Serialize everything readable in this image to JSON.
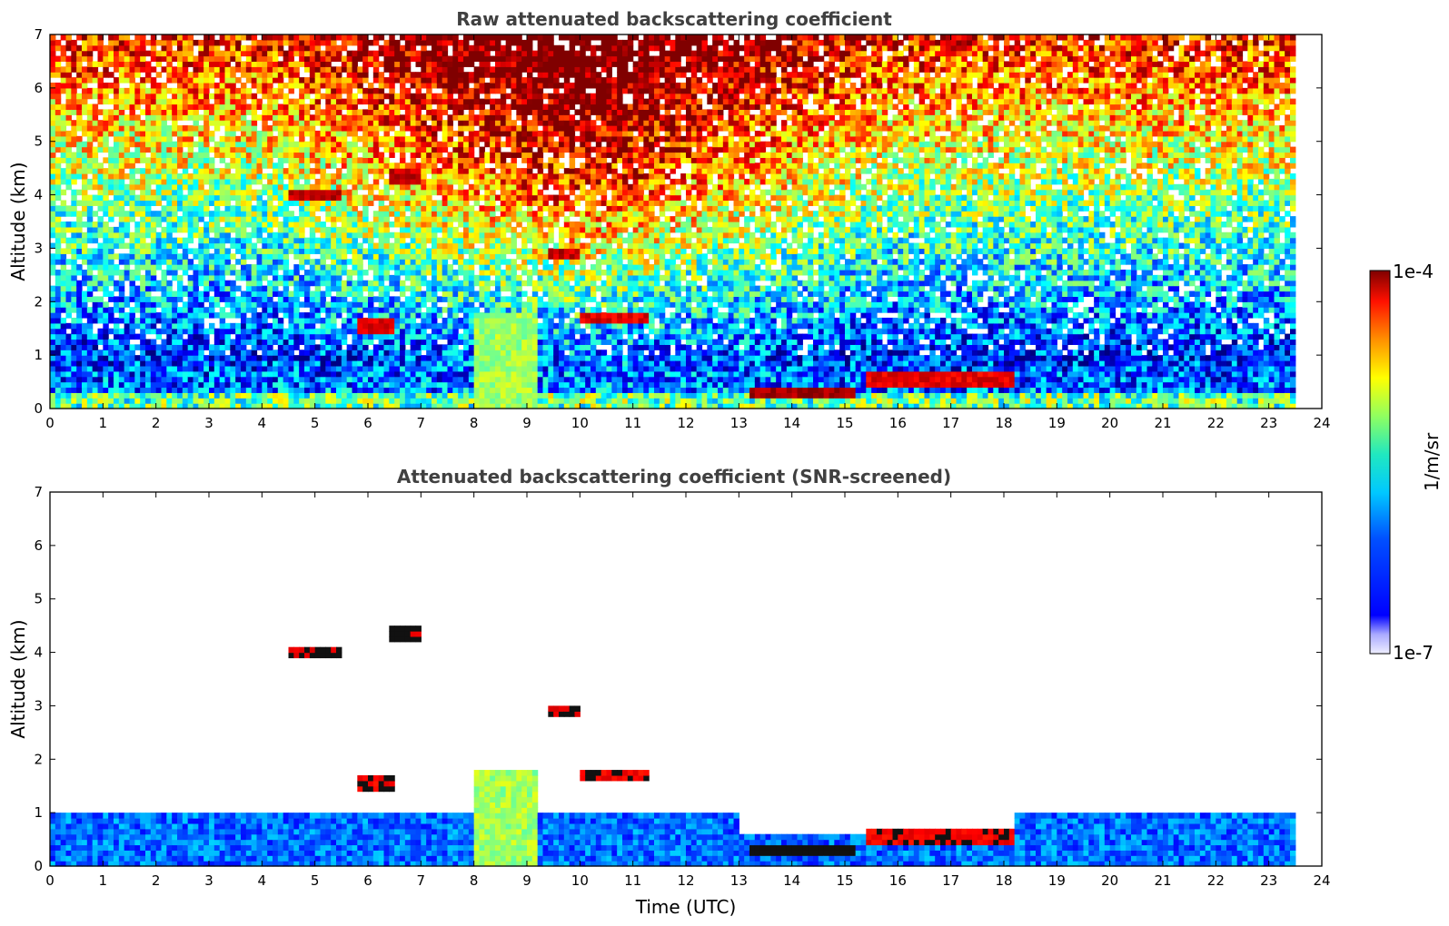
{
  "chart_data": [
    {
      "type": "heatmap",
      "title": "Raw attenuated backscattering coefficient",
      "xlabel": "",
      "ylabel": "Altitude (km)",
      "xlim": [
        0,
        24
      ],
      "ylim": [
        0,
        7
      ],
      "xticks": [
        "0",
        "1",
        "2",
        "3",
        "4",
        "5",
        "6",
        "7",
        "8",
        "9",
        "10",
        "11",
        "12",
        "13",
        "14",
        "15",
        "16",
        "17",
        "18",
        "19",
        "20",
        "21",
        "22",
        "23",
        "24"
      ],
      "yticks": [
        "0",
        "1",
        "2",
        "3",
        "4",
        "5",
        "6",
        "7"
      ],
      "data_end_hour": 23.5,
      "features": [
        {
          "name": "cloud-layer",
          "t_start": 4.5,
          "t_end": 5.5,
          "alt_km": 4.0,
          "log_value": -4.2
        },
        {
          "name": "cloud-layer",
          "t_start": 6.4,
          "t_end": 7.0,
          "alt_km": 4.35,
          "log_value": -4.2
        },
        {
          "name": "cloud-layer",
          "t_start": 5.8,
          "t_end": 6.5,
          "alt_km": 1.55,
          "log_value": -4.3
        },
        {
          "name": "cloud-layer",
          "t_start": 9.4,
          "t_end": 10.0,
          "alt_km": 2.9,
          "log_value": -4.2
        },
        {
          "name": "cloud-layer",
          "t_start": 10.0,
          "t_end": 11.3,
          "alt_km": 1.7,
          "log_value": -4.3
        },
        {
          "name": "cloud-layer",
          "t_start": 13.2,
          "t_end": 15.2,
          "alt_km": 0.3,
          "log_value": -4.1
        },
        {
          "name": "cloud-layer",
          "t_start": 15.4,
          "t_end": 18.2,
          "alt_km": 0.55,
          "log_value": -4.3
        },
        {
          "name": "precipitation",
          "t_start": 8.05,
          "t_end": 9.2,
          "alt_top_km": 1.8,
          "log_value": -5.4
        }
      ]
    },
    {
      "type": "heatmap",
      "title": "Attenuated backscattering coefficient (SNR-screened)",
      "xlabel": "Time (UTC)",
      "ylabel": "Altitude (km)",
      "xlim": [
        0,
        24
      ],
      "ylim": [
        0,
        7
      ],
      "xticks": [
        "0",
        "1",
        "2",
        "3",
        "4",
        "5",
        "6",
        "7",
        "8",
        "9",
        "10",
        "11",
        "12",
        "13",
        "14",
        "15",
        "16",
        "17",
        "18",
        "19",
        "20",
        "21",
        "22",
        "23",
        "24"
      ],
      "yticks": [
        "0",
        "1",
        "2",
        "3",
        "4",
        "5",
        "6",
        "7"
      ],
      "data_end_hour": 23.5,
      "boundary_layer_top_km": 1.0
    }
  ],
  "colorbar": {
    "min_label": "1e-7",
    "max_label": "1e-4",
    "unit": "1/m/sr",
    "colormap": "jet",
    "low_color": "#eeeeff",
    "high_color": "#7f0000"
  }
}
